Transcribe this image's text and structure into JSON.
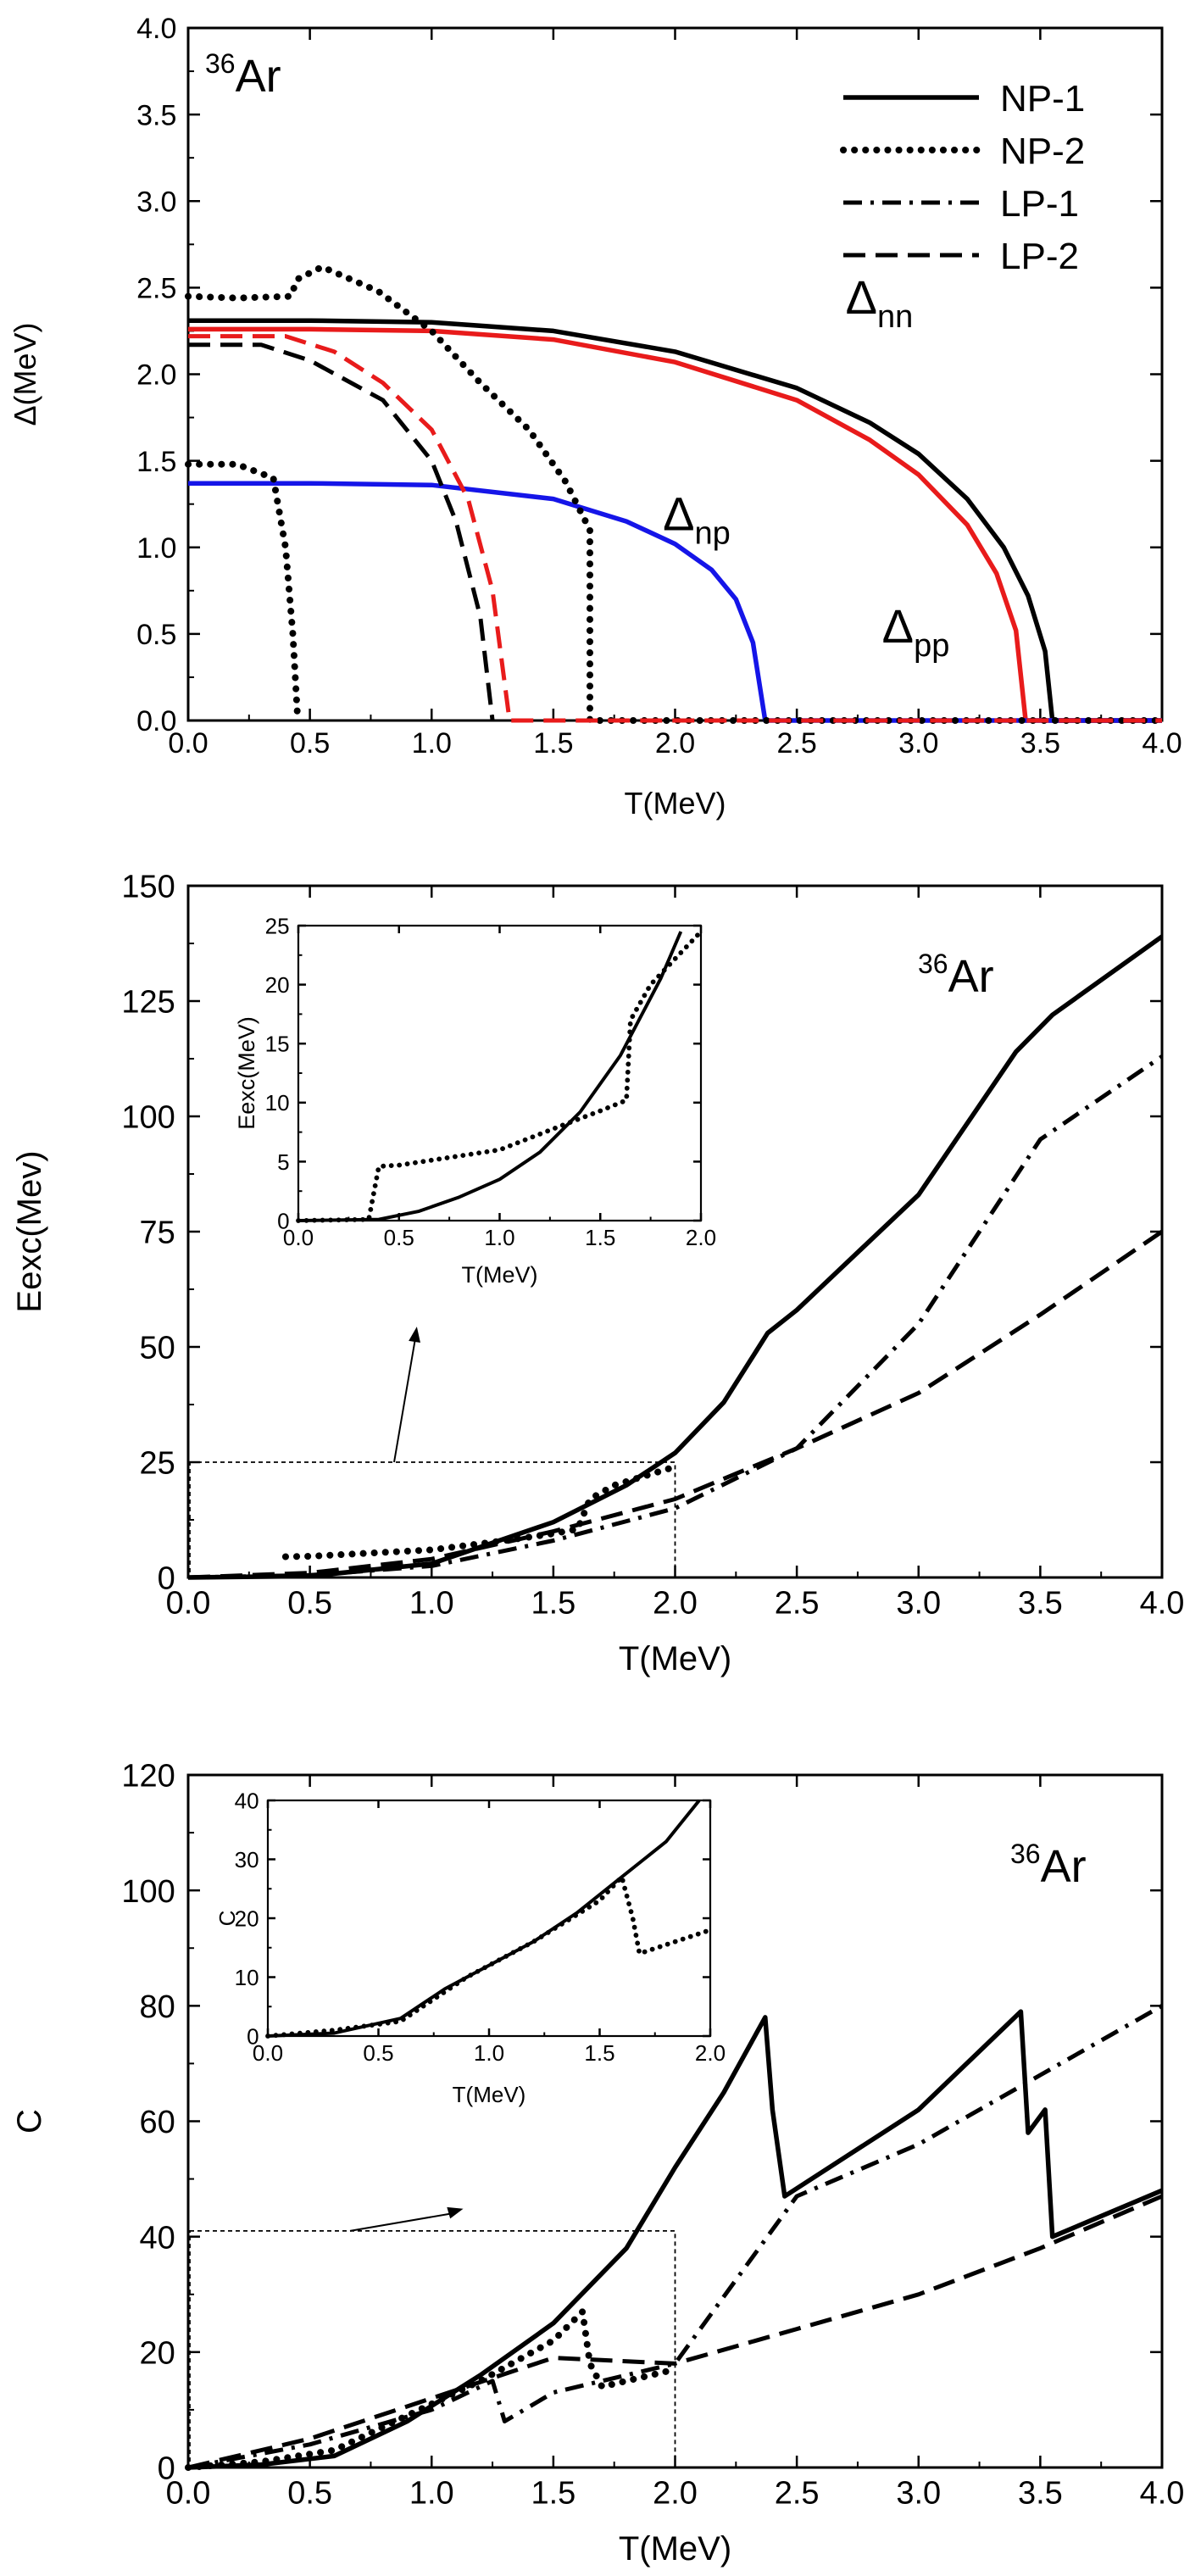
{
  "chart_data": [
    {
      "type": "line",
      "panel": "gap",
      "nucleus": {
        "mass": "36",
        "element": "Ar"
      },
      "xlabel": "T(MeV)",
      "ylabel": "Δ(MeV)",
      "xlim": [
        0,
        4
      ],
      "ylim": [
        0,
        4
      ],
      "xticks": [
        "0.0",
        "0.5",
        "1.0",
        "1.5",
        "2.0",
        "2.5",
        "3.0",
        "3.5",
        "4.0"
      ],
      "yticks": [
        "0.0",
        "0.5",
        "1.0",
        "1.5",
        "2.0",
        "2.5",
        "3.0",
        "3.5",
        "4.0"
      ],
      "legend_position": "top-right",
      "legend": [
        {
          "label": "NP-1",
          "style": "solid"
        },
        {
          "label": "NP-2",
          "style": "dotted"
        },
        {
          "label": "LP-1",
          "style": "dashdot"
        },
        {
          "label": "LP-2",
          "style": "dashed"
        }
      ],
      "annotations": [
        {
          "base": "Δ",
          "sub": "nn",
          "x": 2.7,
          "y": 2.35
        },
        {
          "base": "Δ",
          "sub": "np",
          "x": 1.95,
          "y": 1.1
        },
        {
          "base": "Δ",
          "sub": "pp",
          "x": 2.85,
          "y": 0.45
        }
      ],
      "series": [
        {
          "group": "NP-1",
          "style": "solid",
          "color": "#000000",
          "points": [
            [
              0,
              2.31
            ],
            [
              0.5,
              2.31
            ],
            [
              1.0,
              2.3
            ],
            [
              1.5,
              2.25
            ],
            [
              2.0,
              2.13
            ],
            [
              2.5,
              1.92
            ],
            [
              2.8,
              1.72
            ],
            [
              3.0,
              1.54
            ],
            [
              3.2,
              1.28
            ],
            [
              3.35,
              1.0
            ],
            [
              3.45,
              0.72
            ],
            [
              3.52,
              0.4
            ],
            [
              3.55,
              0.0
            ],
            [
              4.0,
              0.0
            ]
          ]
        },
        {
          "group": "NP-1",
          "style": "solid",
          "color": "#e81b1b",
          "points": [
            [
              0,
              2.26
            ],
            [
              0.5,
              2.26
            ],
            [
              1.0,
              2.25
            ],
            [
              1.5,
              2.2
            ],
            [
              2.0,
              2.07
            ],
            [
              2.5,
              1.85
            ],
            [
              2.8,
              1.62
            ],
            [
              3.0,
              1.42
            ],
            [
              3.2,
              1.13
            ],
            [
              3.32,
              0.85
            ],
            [
              3.4,
              0.52
            ],
            [
              3.44,
              0.0
            ],
            [
              4.0,
              0.0
            ]
          ]
        },
        {
          "group": "NP-1",
          "style": "solid",
          "color": "#1515e8",
          "points": [
            [
              0,
              1.37
            ],
            [
              0.5,
              1.37
            ],
            [
              1.0,
              1.36
            ],
            [
              1.5,
              1.28
            ],
            [
              1.8,
              1.15
            ],
            [
              2.0,
              1.02
            ],
            [
              2.15,
              0.87
            ],
            [
              2.25,
              0.7
            ],
            [
              2.32,
              0.45
            ],
            [
              2.37,
              0.0
            ],
            [
              4.0,
              0.0
            ]
          ]
        },
        {
          "group": "NP-2",
          "style": "dotted",
          "color": "#000000",
          "points": [
            [
              0,
              2.45
            ],
            [
              0.2,
              2.44
            ],
            [
              0.42,
              2.45
            ],
            [
              0.45,
              2.55
            ],
            [
              0.55,
              2.62
            ],
            [
              0.78,
              2.48
            ],
            [
              1.0,
              2.25
            ],
            [
              1.2,
              1.95
            ],
            [
              1.4,
              1.68
            ],
            [
              1.55,
              1.38
            ],
            [
              1.65,
              1.1
            ],
            [
              1.65,
              0.0
            ],
            [
              4.0,
              0.0
            ]
          ]
        },
        {
          "group": "NP-2",
          "style": "dotted",
          "color": "#000000",
          "points": [
            [
              0,
              1.48
            ],
            [
              0.2,
              1.48
            ],
            [
              0.35,
              1.4
            ],
            [
              0.4,
              1.0
            ],
            [
              0.43,
              0.5
            ],
            [
              0.45,
              0.0
            ]
          ]
        },
        {
          "group": "LP-1",
          "style": "dashed",
          "color": "#000000",
          "points": [
            [
              0,
              2.17
            ],
            [
              0.3,
              2.17
            ],
            [
              0.5,
              2.08
            ],
            [
              0.8,
              1.85
            ],
            [
              1.0,
              1.5
            ],
            [
              1.1,
              1.15
            ],
            [
              1.2,
              0.6
            ],
            [
              1.25,
              0.0
            ]
          ]
        },
        {
          "group": "LP-2",
          "style": "dashed",
          "color": "#e81b1b",
          "points": [
            [
              0,
              2.22
            ],
            [
              0.4,
              2.22
            ],
            [
              0.6,
              2.13
            ],
            [
              0.8,
              1.95
            ],
            [
              1.0,
              1.68
            ],
            [
              1.15,
              1.28
            ],
            [
              1.25,
              0.75
            ],
            [
              1.32,
              0.0
            ],
            [
              4.0,
              0.0
            ]
          ]
        }
      ]
    },
    {
      "type": "line",
      "panel": "excitation-energy",
      "nucleus": {
        "mass": "36",
        "element": "Ar"
      },
      "xlabel": "T(MeV)",
      "ylabel": "Eexc(Mev)",
      "xlim": [
        0,
        4
      ],
      "ylim": [
        0,
        150
      ],
      "xticks": [
        "0.0",
        "0.5",
        "1.0",
        "1.5",
        "2.0",
        "2.5",
        "3.0",
        "3.5",
        "4.0"
      ],
      "yticks": [
        "0",
        "25",
        "50",
        "75",
        "100",
        "125",
        "150"
      ],
      "series": [
        {
          "group": "NP-1",
          "style": "solid",
          "points": [
            [
              0,
              0
            ],
            [
              0.5,
              0.3
            ],
            [
              1.0,
              3
            ],
            [
              1.5,
              12
            ],
            [
              1.8,
              20
            ],
            [
              2.0,
              27
            ],
            [
              2.2,
              38
            ],
            [
              2.38,
              53
            ],
            [
              2.5,
              58
            ],
            [
              3.0,
              83
            ],
            [
              3.4,
              114
            ],
            [
              3.55,
              122
            ],
            [
              4.0,
              139
            ]
          ]
        },
        {
          "group": "NP-2",
          "style": "dotted",
          "points": [
            [
              0.4,
              4.5
            ],
            [
              0.5,
              4.6
            ],
            [
              1.0,
              6
            ],
            [
              1.3,
              8
            ],
            [
              1.5,
              9.5
            ],
            [
              1.6,
              10.5
            ],
            [
              1.65,
              17
            ],
            [
              1.75,
              20
            ],
            [
              2.0,
              24
            ]
          ]
        },
        {
          "group": "LP-1",
          "style": "dashdot",
          "points": [
            [
              0,
              0
            ],
            [
              0.5,
              0.5
            ],
            [
              1.0,
              2.5
            ],
            [
              1.5,
              8
            ],
            [
              2.0,
              15
            ],
            [
              2.5,
              28
            ],
            [
              3.0,
              55
            ],
            [
              3.5,
              95
            ],
            [
              4.0,
              113
            ]
          ]
        },
        {
          "group": "LP-2",
          "style": "dashed",
          "points": [
            [
              0,
              0
            ],
            [
              0.5,
              1
            ],
            [
              1.0,
              4
            ],
            [
              1.5,
              10
            ],
            [
              2.0,
              17
            ],
            [
              2.5,
              28
            ],
            [
              3.0,
              40
            ],
            [
              3.5,
              57
            ],
            [
              4.0,
              75
            ]
          ]
        }
      ],
      "zoom_box": {
        "x": [
          0,
          2
        ],
        "y": [
          0,
          25
        ]
      },
      "inset": {
        "xlabel": "T(MeV)",
        "ylabel": "Eexc(MeV)",
        "xlim": [
          0,
          2
        ],
        "ylim": [
          0,
          25
        ],
        "xticks": [
          "0.0",
          "0.5",
          "1.0",
          "1.5",
          "2.0"
        ],
        "yticks": [
          "0",
          "5",
          "10",
          "15",
          "20",
          "25"
        ],
        "series": [
          {
            "group": "NP-1",
            "style": "solid",
            "points": [
              [
                0,
                0
              ],
              [
                0.4,
                0.1
              ],
              [
                0.6,
                0.8
              ],
              [
                0.8,
                2.0
              ],
              [
                1.0,
                3.5
              ],
              [
                1.2,
                5.8
              ],
              [
                1.4,
                9.2
              ],
              [
                1.6,
                14
              ],
              [
                1.8,
                20.5
              ],
              [
                1.9,
                24.5
              ]
            ]
          },
          {
            "group": "NP-2",
            "style": "dotted",
            "points": [
              [
                0,
                0
              ],
              [
                0.35,
                0.1
              ],
              [
                0.4,
                4.6
              ],
              [
                0.5,
                4.7
              ],
              [
                1.0,
                6.0
              ],
              [
                1.3,
                8.0
              ],
              [
                1.5,
                9.3
              ],
              [
                1.63,
                10.2
              ],
              [
                1.65,
                17
              ],
              [
                1.75,
                20
              ],
              [
                2.0,
                24.5
              ]
            ]
          }
        ]
      }
    },
    {
      "type": "line",
      "panel": "heat-capacity",
      "nucleus": {
        "mass": "36",
        "element": "Ar"
      },
      "xlabel": "T(MeV)",
      "ylabel": "C",
      "xlim": [
        0,
        4
      ],
      "ylim": [
        0,
        120
      ],
      "xticks": [
        "0.0",
        "0.5",
        "1.0",
        "1.5",
        "2.0",
        "2.5",
        "3.0",
        "3.5",
        "4.0"
      ],
      "yticks": [
        "0",
        "20",
        "40",
        "60",
        "80",
        "100",
        "120"
      ],
      "series": [
        {
          "group": "NP-1",
          "style": "solid",
          "points": [
            [
              0,
              0
            ],
            [
              0.3,
              0.5
            ],
            [
              0.6,
              2
            ],
            [
              0.9,
              8
            ],
            [
              1.2,
              16
            ],
            [
              1.5,
              25
            ],
            [
              1.8,
              38
            ],
            [
              2.0,
              52
            ],
            [
              2.2,
              65
            ],
            [
              2.37,
              78
            ],
            [
              2.4,
              62
            ],
            [
              2.45,
              47
            ],
            [
              3.0,
              62
            ],
            [
              3.42,
              79
            ],
            [
              3.45,
              58
            ],
            [
              3.52,
              62
            ],
            [
              3.55,
              40
            ],
            [
              4.0,
              48
            ]
          ]
        },
        {
          "group": "NP-2",
          "style": "dotted",
          "points": [
            [
              0,
              0
            ],
            [
              0.3,
              1
            ],
            [
              0.6,
              3
            ],
            [
              0.9,
              9
            ],
            [
              1.2,
              15
            ],
            [
              1.5,
              22
            ],
            [
              1.62,
              27
            ],
            [
              1.65,
              18
            ],
            [
              1.7,
              14
            ],
            [
              2.0,
              17
            ]
          ]
        },
        {
          "group": "LP-1",
          "style": "dashdot",
          "points": [
            [
              0,
              0
            ],
            [
              0.5,
              4
            ],
            [
              1.0,
              10
            ],
            [
              1.25,
              15
            ],
            [
              1.3,
              8
            ],
            [
              1.5,
              13
            ],
            [
              2.0,
              18
            ],
            [
              2.5,
              47
            ],
            [
              3.0,
              56
            ],
            [
              3.5,
              68
            ],
            [
              4.0,
              80
            ]
          ]
        },
        {
          "group": "LP-2",
          "style": "dashed",
          "points": [
            [
              0,
              0
            ],
            [
              0.5,
              5
            ],
            [
              1.0,
              12
            ],
            [
              1.5,
              19
            ],
            [
              2.0,
              18
            ],
            [
              2.5,
              24
            ],
            [
              3.0,
              30
            ],
            [
              3.5,
              38
            ],
            [
              4.0,
              47
            ]
          ]
        }
      ],
      "zoom_box": {
        "x": [
          0,
          2
        ],
        "y": [
          0,
          41
        ]
      },
      "inset": {
        "xlabel": "T(MeV)",
        "ylabel": "C",
        "xlim": [
          0,
          2
        ],
        "ylim": [
          0,
          40
        ],
        "xticks": [
          "0.0",
          "0.5",
          "1.0",
          "1.5",
          "2.0"
        ],
        "yticks": [
          "0",
          "10",
          "20",
          "30",
          "40"
        ],
        "series": [
          {
            "group": "NP-1",
            "style": "solid",
            "points": [
              [
                0,
                0
              ],
              [
                0.3,
                0.5
              ],
              [
                0.6,
                3
              ],
              [
                0.8,
                8
              ],
              [
                1.0,
                12
              ],
              [
                1.2,
                16
              ],
              [
                1.4,
                21
              ],
              [
                1.6,
                27
              ],
              [
                1.8,
                33
              ],
              [
                1.95,
                40
              ]
            ]
          },
          {
            "group": "NP-2",
            "style": "dotted",
            "points": [
              [
                0,
                0
              ],
              [
                0.3,
                1
              ],
              [
                0.6,
                2.5
              ],
              [
                0.9,
                10
              ],
              [
                1.2,
                16
              ],
              [
                1.5,
                23
              ],
              [
                1.6,
                27
              ],
              [
                1.65,
                20
              ],
              [
                1.68,
                14
              ],
              [
                2.0,
                18
              ]
            ]
          }
        ]
      }
    }
  ]
}
